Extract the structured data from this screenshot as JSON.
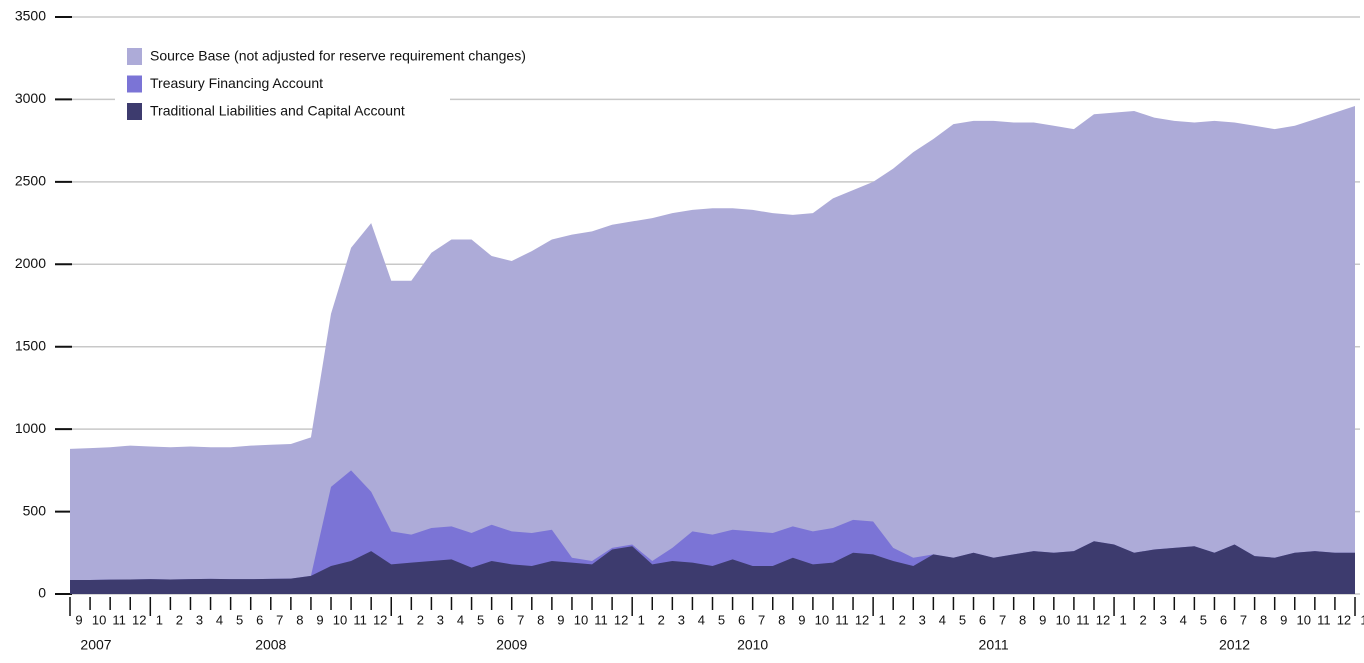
{
  "chart_data": {
    "type": "area",
    "categories": [
      "9",
      "10",
      "11",
      "12",
      "1",
      "2",
      "3",
      "4",
      "5",
      "6",
      "7",
      "8",
      "9",
      "10",
      "11",
      "12",
      "1",
      "2",
      "3",
      "4",
      "5",
      "6",
      "7",
      "8",
      "9",
      "10",
      "11",
      "12",
      "1",
      "2",
      "3",
      "4",
      "5",
      "6",
      "7",
      "8",
      "9",
      "10",
      "11",
      "12",
      "1",
      "2",
      "3",
      "4",
      "5",
      "6",
      "7",
      "8",
      "9",
      "10",
      "11",
      "12",
      "1",
      "2",
      "3",
      "4",
      "5",
      "6",
      "7",
      "8",
      "9",
      "10",
      "11",
      "12",
      "1"
    ],
    "years": [
      "2007",
      "2008",
      "2009",
      "2010",
      "2011",
      "2012"
    ],
    "series": [
      {
        "name": "Source Base (not adjusted for reserve requirement changes)",
        "color": "#adabd8",
        "values": [
          880,
          885,
          890,
          900,
          895,
          890,
          895,
          890,
          890,
          900,
          905,
          910,
          950,
          1700,
          2100,
          2250,
          1900,
          1900,
          2070,
          2150,
          2150,
          2050,
          2020,
          2080,
          2150,
          2180,
          2200,
          2240,
          2260,
          2280,
          2310,
          2330,
          2340,
          2340,
          2330,
          2310,
          2300,
          2310,
          2400,
          2450,
          2500,
          2580,
          2680,
          2760,
          2850,
          2870,
          2870,
          2860,
          2860,
          2840,
          2820,
          2910,
          2920,
          2930,
          2890,
          2870,
          2860,
          2870,
          2860,
          2840,
          2820,
          2840,
          2880,
          2920,
          2960
        ]
      },
      {
        "name": "Treasury Financing Account",
        "color": "#7b74d6",
        "values": [
          85,
          85,
          87,
          88,
          90,
          88,
          90,
          92,
          90,
          90,
          92,
          93,
          110,
          650,
          750,
          620,
          380,
          360,
          400,
          410,
          370,
          420,
          380,
          370,
          390,
          220,
          200,
          280,
          300,
          200,
          280,
          380,
          360,
          390,
          380,
          370,
          410,
          380,
          400,
          450,
          440,
          280,
          220,
          240,
          220,
          250,
          220,
          240,
          260,
          250,
          260,
          320,
          300,
          250,
          270,
          280,
          290,
          250,
          300,
          230,
          220,
          250,
          260,
          250,
          250
        ]
      },
      {
        "name": "Traditional Liabilities and Capital Account",
        "color": "#3d3b6e",
        "values": [
          85,
          85,
          87,
          88,
          90,
          88,
          90,
          92,
          90,
          90,
          92,
          93,
          110,
          170,
          200,
          260,
          180,
          190,
          200,
          210,
          160,
          200,
          180,
          170,
          200,
          190,
          180,
          270,
          290,
          180,
          200,
          190,
          170,
          210,
          170,
          170,
          220,
          180,
          190,
          250,
          240,
          200,
          170,
          240,
          220,
          250,
          220,
          240,
          260,
          250,
          260,
          320,
          300,
          250,
          270,
          280,
          290,
          250,
          300,
          230,
          220,
          250,
          260,
          250,
          250
        ]
      }
    ],
    "ylim": [
      0,
      3500
    ],
    "yticks": [
      0,
      500,
      1000,
      1500,
      2000,
      2500,
      3000,
      3500
    ],
    "grid": true
  }
}
